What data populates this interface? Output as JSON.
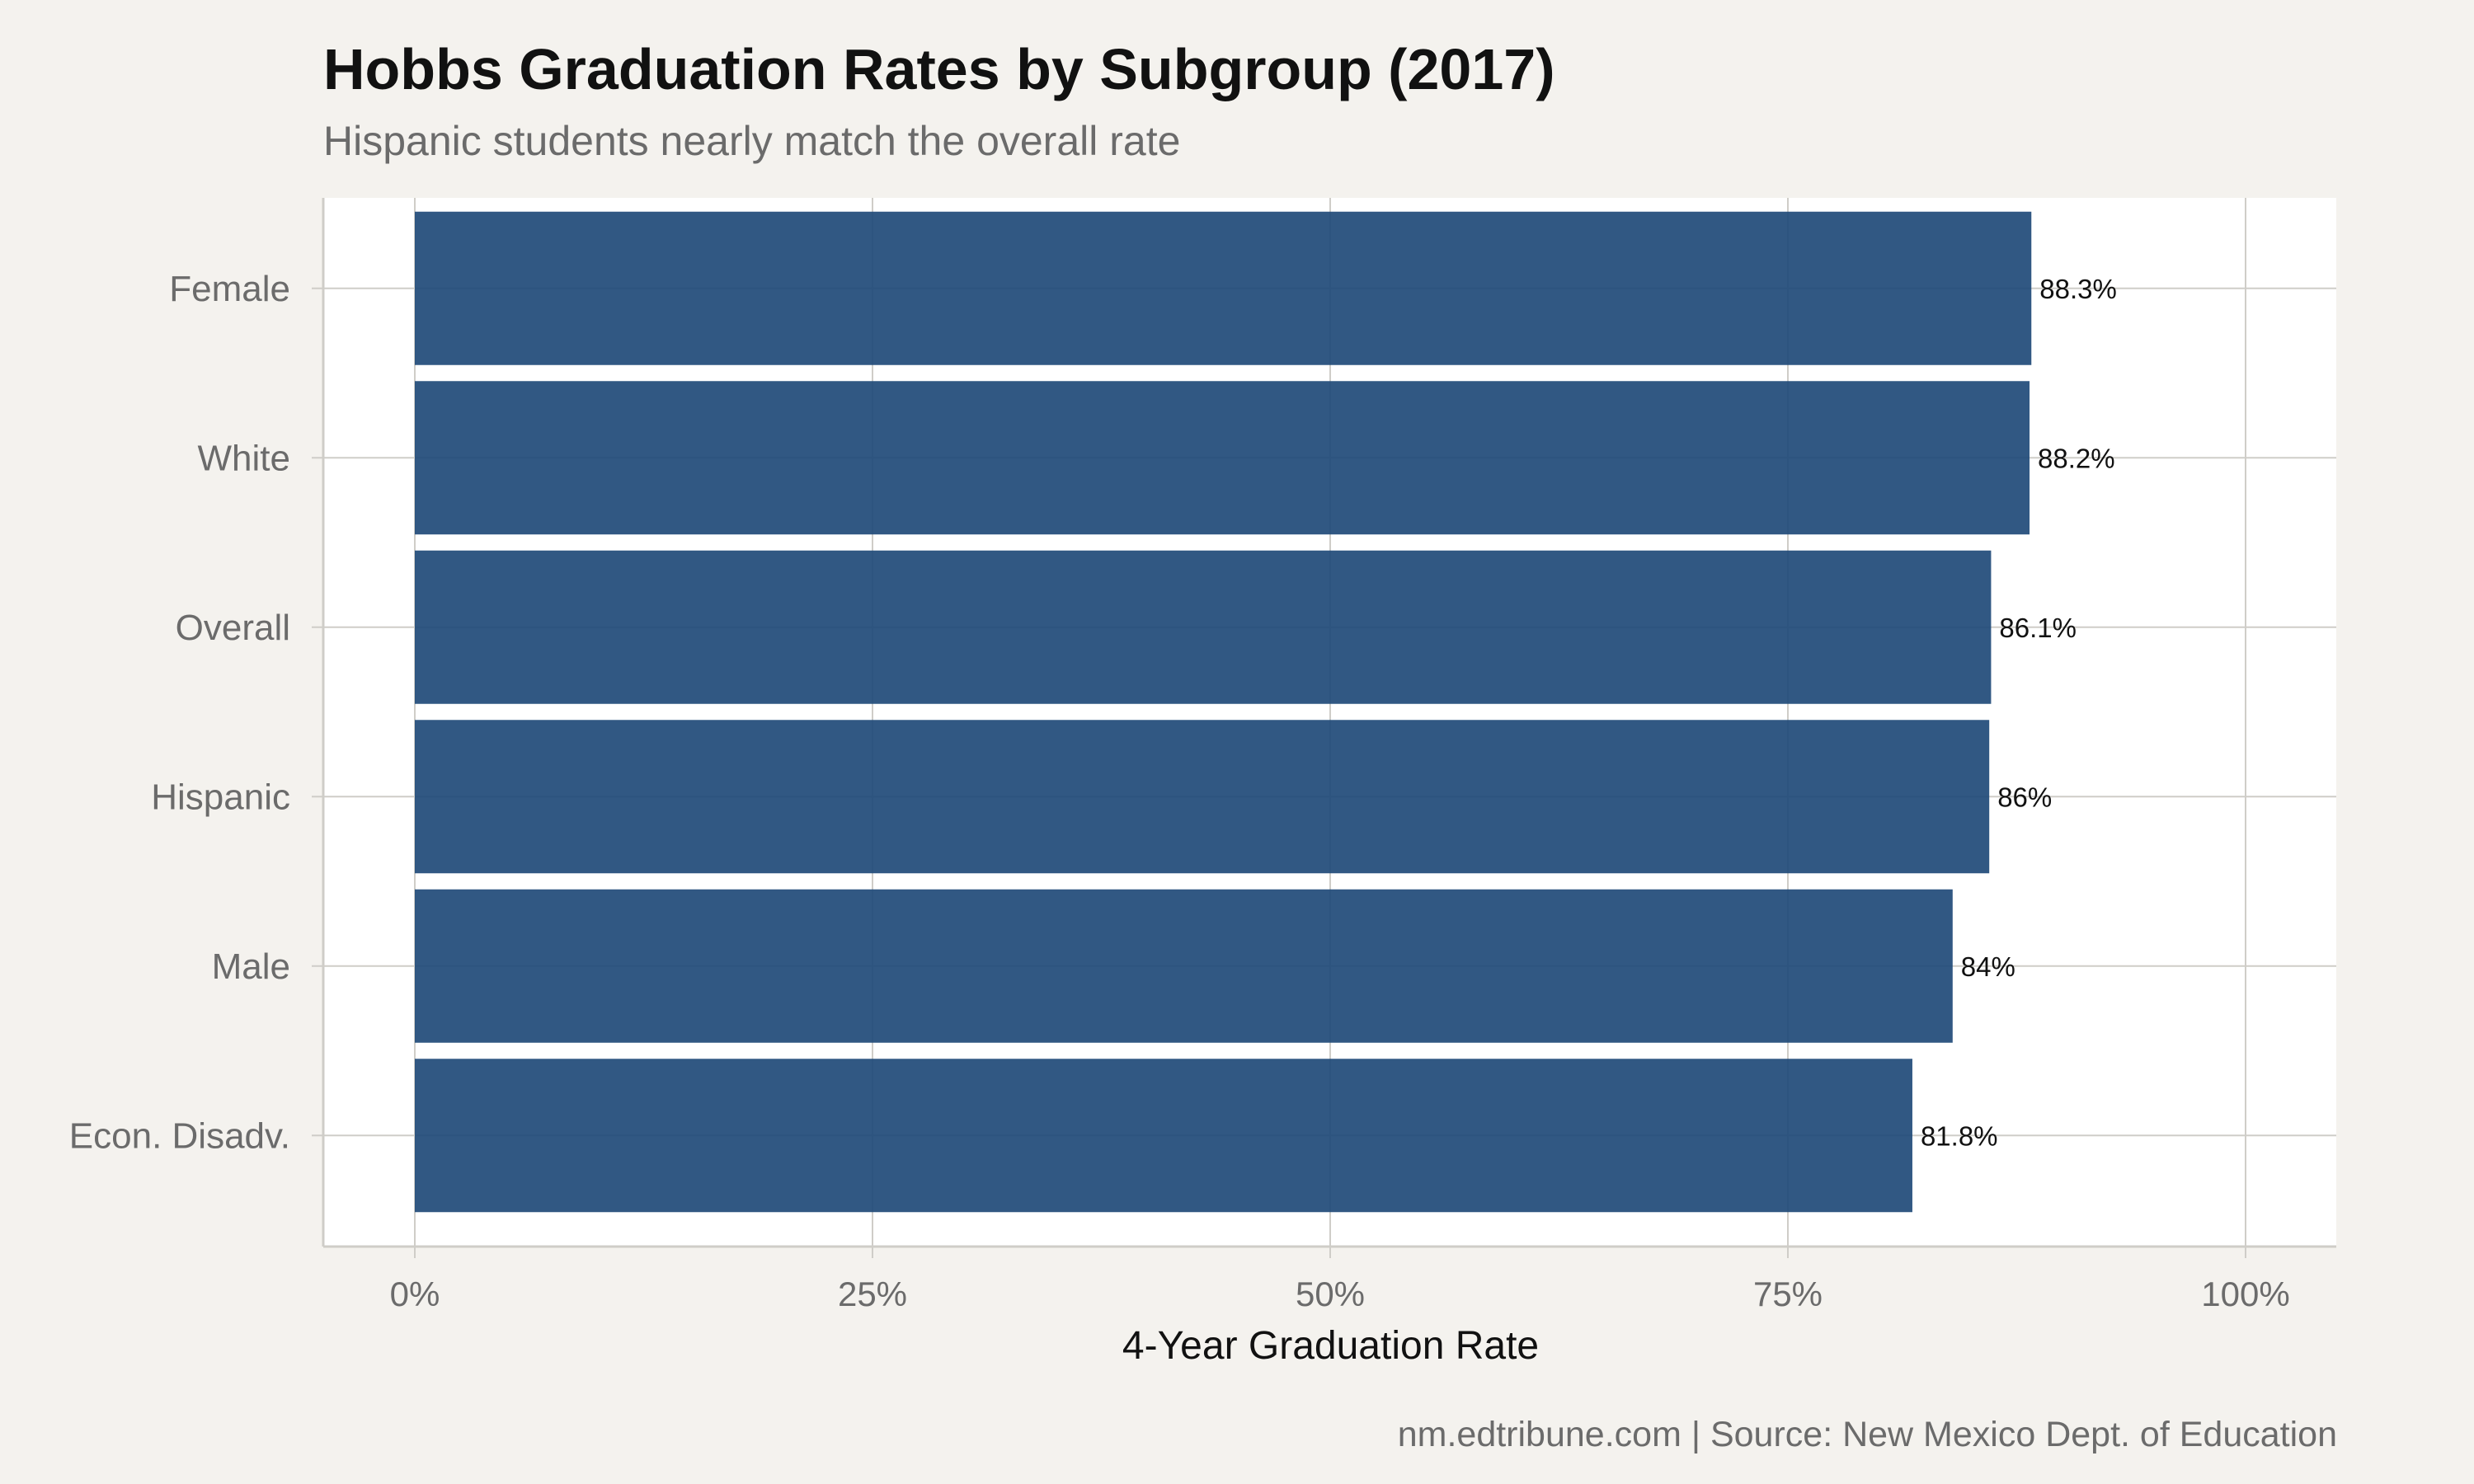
{
  "colors": {
    "background": "#f4f2ee",
    "panel": "#ffffff",
    "bar": "#1f4a78",
    "grid": "#cfcdc8"
  },
  "chart_data": {
    "type": "bar",
    "orientation": "horizontal",
    "title": "Hobbs Graduation Rates by Subgroup (2017)",
    "subtitle": "Hispanic students nearly match the overall rate",
    "xlabel": "4-Year Graduation Rate",
    "ylabel": "",
    "xlim": [
      0,
      100
    ],
    "x_ticks": [
      0,
      25,
      50,
      75,
      100
    ],
    "x_tick_labels": [
      "0%",
      "25%",
      "50%",
      "75%",
      "100%"
    ],
    "categories": [
      "Female",
      "White",
      "Overall",
      "Hispanic",
      "Male",
      "Econ. Disadv."
    ],
    "values": [
      88.3,
      88.2,
      86.1,
      86.0,
      84.0,
      81.8
    ],
    "data_labels": [
      "88.3%",
      "88.2%",
      "86.1%",
      "86%",
      "84%",
      "81.8%"
    ],
    "grid": true,
    "legend": "none",
    "caption": "nm.edtribune.com | Source: New Mexico Dept. of Education"
  }
}
